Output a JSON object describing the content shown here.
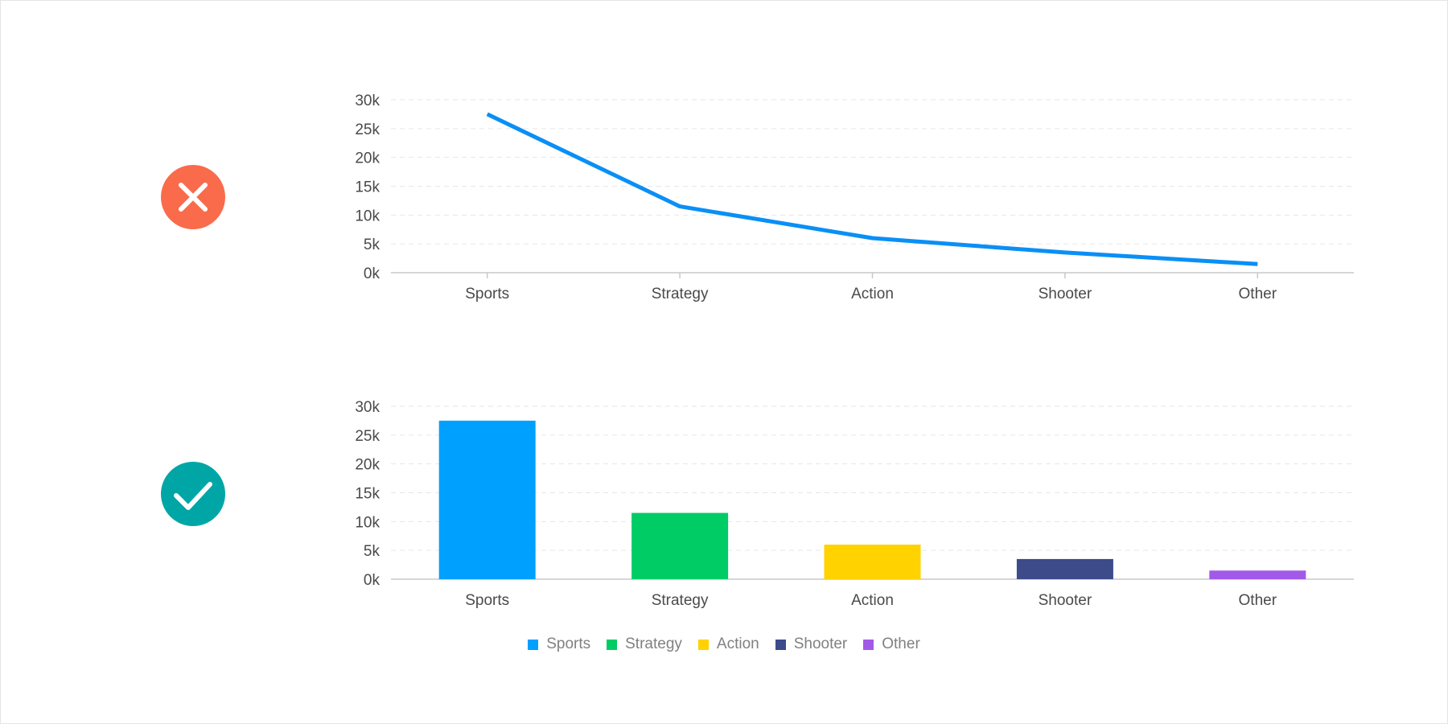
{
  "colors": {
    "line": "#0a8ff5",
    "wrong_icon": "#f96b4b",
    "right_icon": "#00a6a6",
    "grid": "#e6e6e6",
    "axis": "#c8c8c8"
  },
  "icons": {
    "wrong": "x-circle-icon",
    "right": "check-circle-icon"
  },
  "chart_data": [
    {
      "type": "line",
      "categories": [
        "Sports",
        "Strategy",
        "Action",
        "Shooter",
        "Other"
      ],
      "values": [
        27500,
        11500,
        6000,
        3500,
        1500
      ],
      "yticks": [
        "0k",
        "5k",
        "10k",
        "15k",
        "20k",
        "25k",
        "30k"
      ],
      "ylim": [
        0,
        30000
      ],
      "grid": true
    },
    {
      "type": "bar",
      "categories": [
        "Sports",
        "Strategy",
        "Action",
        "Shooter",
        "Other"
      ],
      "values": [
        27500,
        11500,
        6000,
        3500,
        1500
      ],
      "colors": [
        "#00a0ff",
        "#00cc66",
        "#ffd200",
        "#3d4b8a",
        "#a259e8"
      ],
      "yticks": [
        "0k",
        "5k",
        "10k",
        "15k",
        "20k",
        "25k",
        "30k"
      ],
      "ylim": [
        0,
        30000
      ],
      "grid": true,
      "legend": {
        "position": "bottom",
        "entries": [
          "Sports",
          "Strategy",
          "Action",
          "Shooter",
          "Other"
        ]
      }
    }
  ]
}
